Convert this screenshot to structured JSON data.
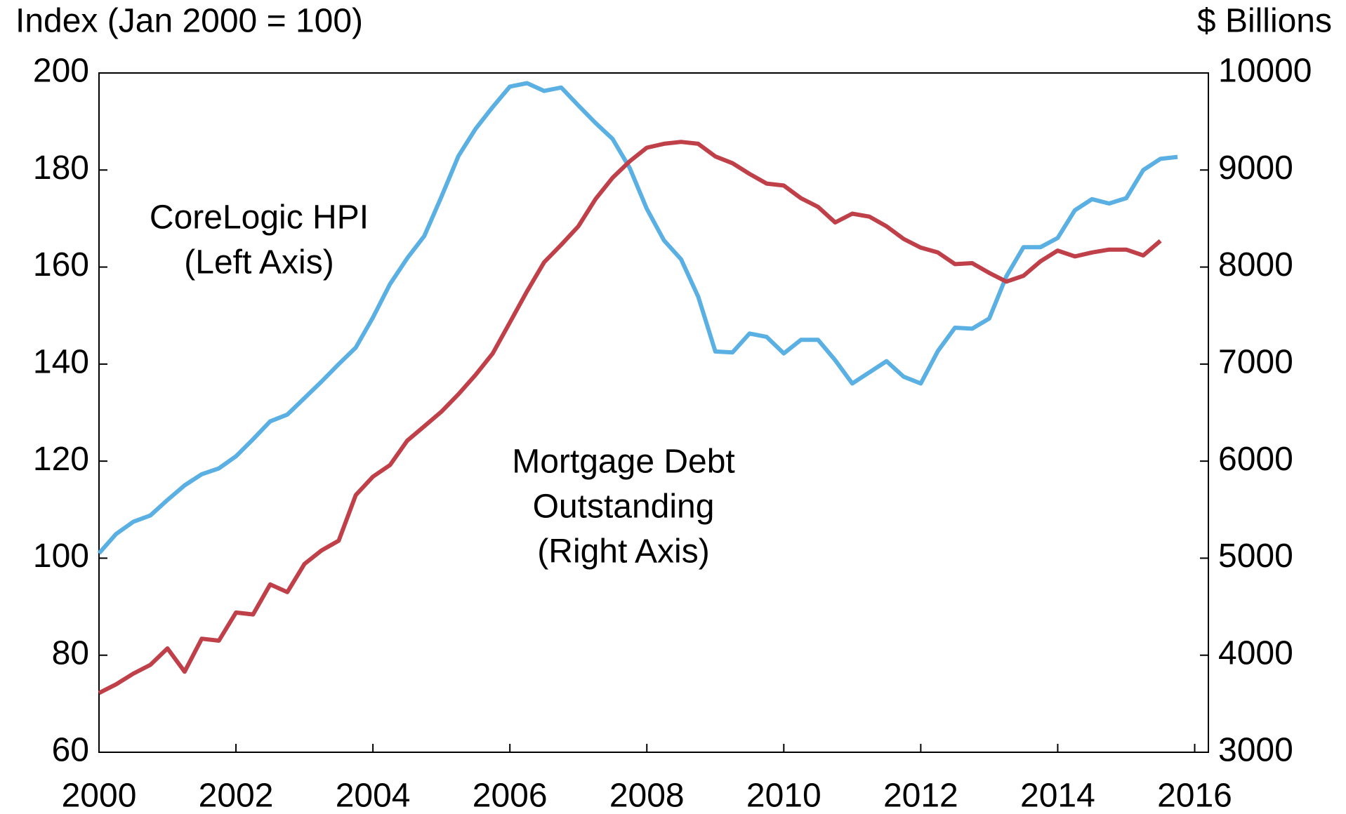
{
  "chart_data": {
    "type": "line",
    "y_label": "Index (Jan 2000 = 100)",
    "y2_label": "$ Billions",
    "annotations": [
      "CoreLogic HPI",
      "(Left Axis)",
      "Mortgage Debt",
      "Outstanding",
      "(Right Axis)"
    ],
    "x": [
      2000,
      2000.25,
      2000.5,
      2000.75,
      2001,
      2001.25,
      2001.5,
      2001.75,
      2002,
      2002.25,
      2002.5,
      2002.75,
      2003,
      2003.25,
      2003.5,
      2003.75,
      2004,
      2004.25,
      2004.5,
      2004.75,
      2005,
      2005.25,
      2005.5,
      2005.75,
      2006,
      2006.25,
      2006.5,
      2006.75,
      2007,
      2007.25,
      2007.5,
      2007.75,
      2008,
      2008.25,
      2008.5,
      2008.75,
      2009,
      2009.25,
      2009.5,
      2009.75,
      2010,
      2010.25,
      2010.5,
      2010.75,
      2011,
      2011.25,
      2011.5,
      2011.75,
      2012,
      2012.25,
      2012.5,
      2012.75,
      2013,
      2013.25,
      2013.5,
      2013.75,
      2014,
      2014.25,
      2014.5,
      2014.75,
      2015,
      2015.25,
      2015.5,
      2015.75
    ],
    "series": [
      {
        "name": "CoreLogic HPI",
        "color": "#5aafe3",
        "axis": "y",
        "values": [
          101,
          105,
          107.5,
          108.8,
          112,
          115,
          117.3,
          118.5,
          121,
          124.5,
          128.2,
          129.6,
          133,
          136.4,
          140,
          143.4,
          149.6,
          156.5,
          161.8,
          166.4,
          174.5,
          182.9,
          188.5,
          193,
          197.2,
          197.9,
          196.3,
          197,
          193.3,
          189.7,
          186.4,
          180.4,
          172,
          165.5,
          161.6,
          153.9,
          142.6,
          142.4,
          146.3,
          145.6,
          142.2,
          145,
          145,
          140.8,
          136,
          138.3,
          140.6,
          137.4,
          136,
          142.7,
          147.5,
          147.3,
          149.4,
          158.1,
          164.1,
          164.1,
          166,
          171.7,
          174,
          173.1,
          174.2,
          180,
          182.3,
          182.7
        ]
      },
      {
        "name": "Mortgage Debt Outstanding",
        "color": "#c0404a",
        "axis": "y2",
        "values": [
          3610,
          3700,
          3810,
          3900,
          4070,
          3830,
          4170,
          4150,
          4440,
          4420,
          4730,
          4650,
          4940,
          5080,
          5180,
          5650,
          5840,
          5960,
          6210,
          6360,
          6510,
          6690,
          6890,
          7110,
          7430,
          7750,
          8050,
          8230,
          8420,
          8700,
          8920,
          9090,
          9230,
          9270,
          9290,
          9270,
          9140,
          9070,
          8960,
          8860,
          8840,
          8710,
          8620,
          8460,
          8550,
          8520,
          8420,
          8290,
          8200,
          8150,
          8030,
          8040,
          7940,
          7850,
          7910,
          8060,
          8170,
          8110,
          8150,
          8180,
          8180,
          8120,
          8270,
          null
        ]
      }
    ],
    "xlim": [
      2000,
      2016.2
    ],
    "xticks": [
      2000,
      2002,
      2004,
      2006,
      2008,
      2010,
      2012,
      2014,
      2016
    ],
    "ylim": [
      60,
      200
    ],
    "yticks": [
      60,
      80,
      100,
      120,
      140,
      160,
      180,
      200
    ],
    "y2lim": [
      3000,
      10000
    ],
    "y2ticks": [
      3000,
      4000,
      5000,
      6000,
      7000,
      8000,
      9000,
      10000
    ]
  }
}
